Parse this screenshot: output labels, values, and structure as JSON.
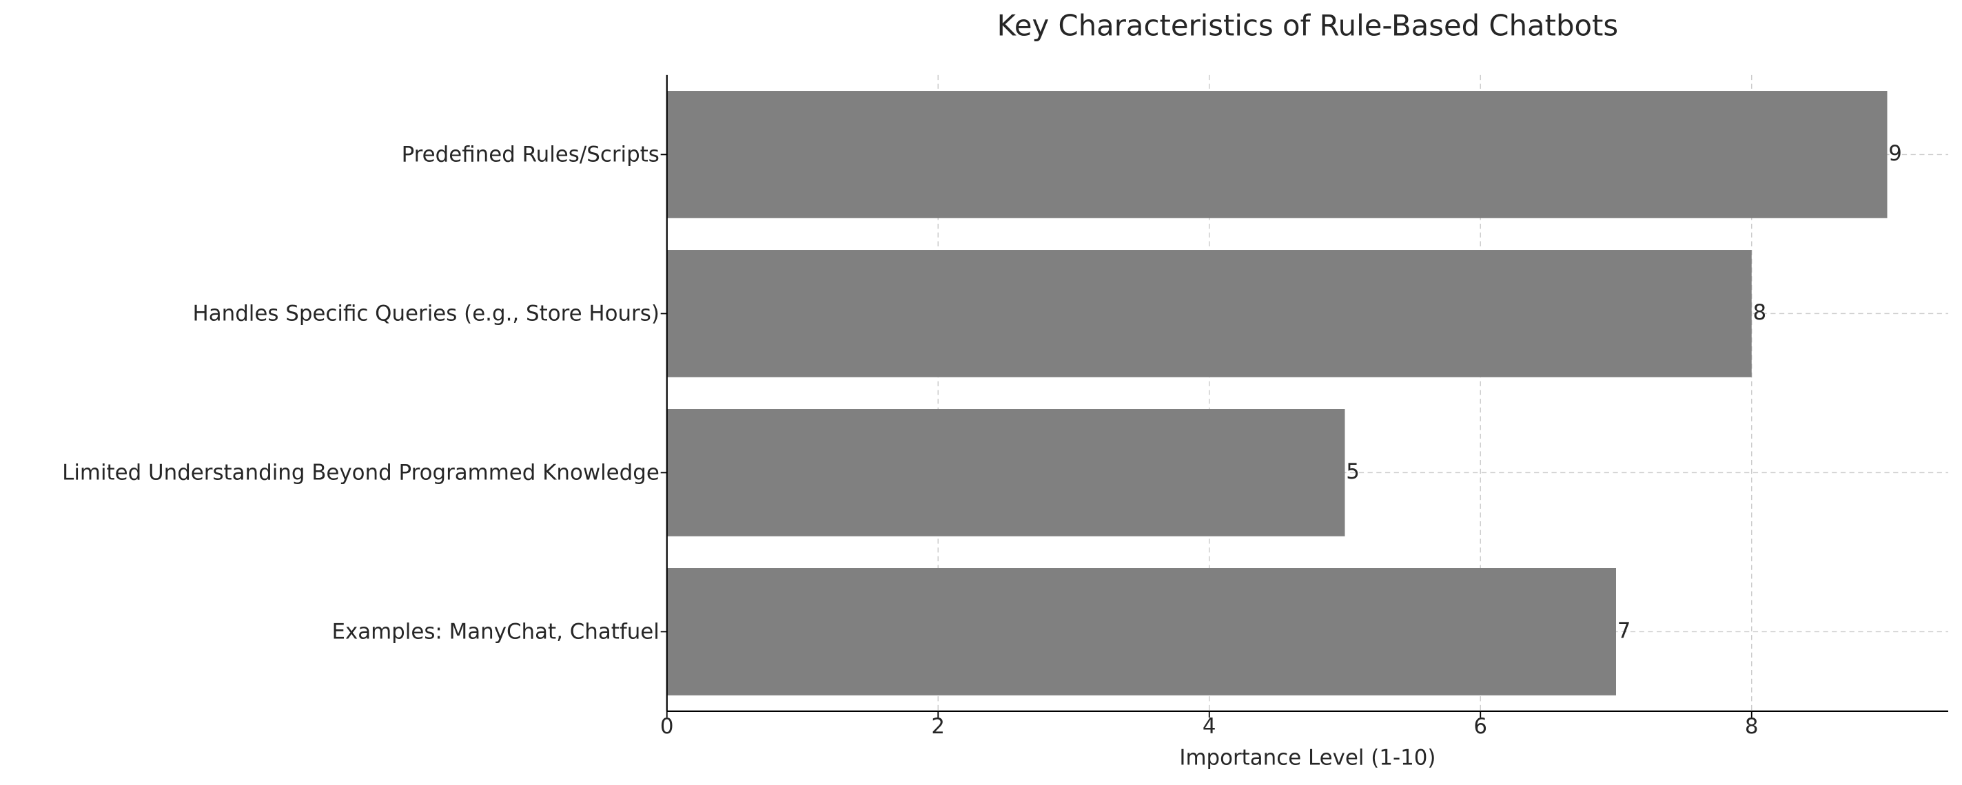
{
  "chart_data": {
    "type": "bar",
    "orientation": "horizontal",
    "title": "Key Characteristics of Rule-Based Chatbots",
    "xlabel": "Importance Level (1-10)",
    "categories": [
      "Predefined Rules/Scripts",
      "Handles Specific Queries (e.g., Store Hours)",
      "Limited Understanding Beyond Programmed Knowledge",
      "Examples: ManyChat, Chatfuel"
    ],
    "values": [
      9,
      8,
      5,
      7
    ],
    "color": "#808080",
    "xlim": [
      0,
      9.45
    ],
    "xticks": [
      0,
      2,
      4,
      6,
      8
    ],
    "grid": true
  }
}
